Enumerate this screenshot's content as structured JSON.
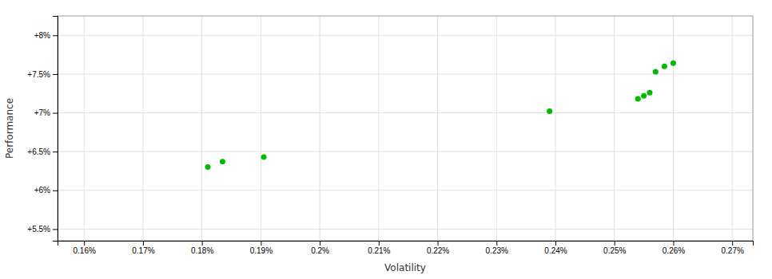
{
  "chart_data": {
    "type": "scatter",
    "xlabel": "Volatility",
    "ylabel": "Performance",
    "color": "#00bb00",
    "grid": true,
    "xlim": [
      0.1555,
      0.2735
    ],
    "ylim": [
      0.0535,
      0.0825
    ],
    "xticks": [
      {
        "value": 0.16,
        "label": "0.16%"
      },
      {
        "value": 0.17,
        "label": "0.17%"
      },
      {
        "value": 0.18,
        "label": "0.18%"
      },
      {
        "value": 0.19,
        "label": "0.19%"
      },
      {
        "value": 0.2,
        "label": "0.2%"
      },
      {
        "value": 0.21,
        "label": "0.21%"
      },
      {
        "value": 0.22,
        "label": "0.22%"
      },
      {
        "value": 0.23,
        "label": "0.23%"
      },
      {
        "value": 0.24,
        "label": "0.24%"
      },
      {
        "value": 0.25,
        "label": "0.25%"
      },
      {
        "value": 0.26,
        "label": "0.26%"
      },
      {
        "value": 0.27,
        "label": "0.27%"
      }
    ],
    "yticks": [
      {
        "value": 0.055,
        "label": "+5.5%"
      },
      {
        "value": 0.06,
        "label": "+6%"
      },
      {
        "value": 0.065,
        "label": "+6.5%"
      },
      {
        "value": 0.07,
        "label": "+7%"
      },
      {
        "value": 0.075,
        "label": "+7.5%"
      },
      {
        "value": 0.08,
        "label": "+8%"
      }
    ],
    "x": [
      0.181,
      0.1835,
      0.1905,
      0.239,
      0.254,
      0.255,
      0.256,
      0.257,
      0.2585,
      0.26
    ],
    "values": [
      0.063,
      0.0637,
      0.0643,
      0.0702,
      0.0718,
      0.0722,
      0.0726,
      0.0753,
      0.076,
      0.0764
    ]
  }
}
